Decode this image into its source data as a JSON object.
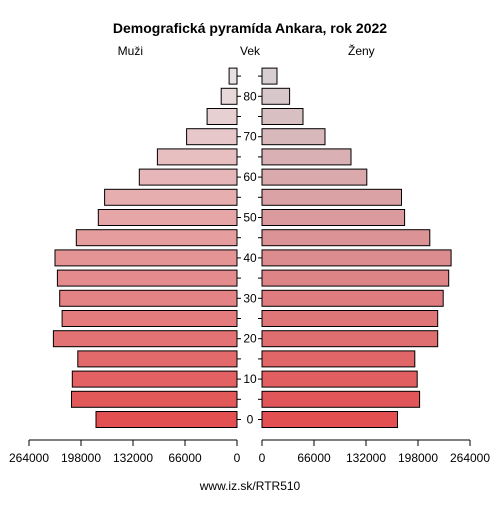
{
  "chart_data": {
    "type": "bar",
    "title": "Demografická pyramída Ankara, rok 2022",
    "left_label": "Muži",
    "center_label": "Vek",
    "right_label": "Ženy",
    "footer": "www.iz.sk/RTR510",
    "x_axis_max": 264000,
    "x_ticks": [
      264000,
      198000,
      132000,
      66000,
      0
    ],
    "x_tick_labels": [
      "264000",
      "198000",
      "132000",
      "66000",
      "0"
    ],
    "age_ticks": [
      0,
      10,
      20,
      30,
      40,
      50,
      60,
      70,
      80
    ],
    "age_groups": [
      "0-4",
      "5-9",
      "10-14",
      "15-19",
      "20-24",
      "25-29",
      "30-34",
      "35-39",
      "40-44",
      "45-49",
      "50-54",
      "55-59",
      "60-64",
      "65-69",
      "70-74",
      "75-79",
      "80-84",
      "85+"
    ],
    "series": [
      {
        "name": "Muži",
        "values": [
          179000,
          210000,
          209000,
          202000,
          233000,
          222000,
          225000,
          228000,
          231000,
          204000,
          176000,
          168000,
          124000,
          101000,
          64000,
          38000,
          20000,
          10000
        ]
      },
      {
        "name": "Ženy",
        "values": [
          172000,
          200000,
          197000,
          194000,
          223000,
          223000,
          230000,
          237000,
          240000,
          213000,
          181000,
          177000,
          133000,
          113000,
          80000,
          52000,
          35000,
          19000
        ]
      }
    ]
  }
}
